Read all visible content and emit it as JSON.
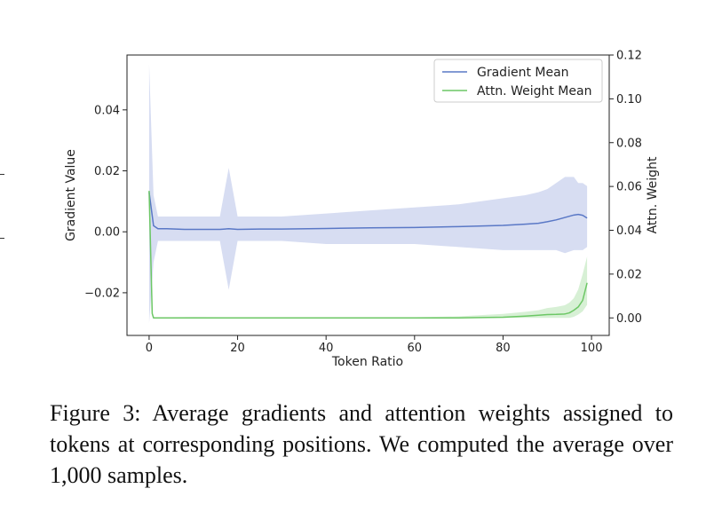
{
  "chart_data": {
    "type": "line",
    "xlabel": "Token Ratio",
    "ylabel_left": "Gradient Value",
    "ylabel_right": "Attn. Weight",
    "xlim": [
      -5,
      104
    ],
    "ylim_left": [
      -0.034,
      0.058
    ],
    "ylim_right": [
      -0.008,
      0.12
    ],
    "x_ticks": [
      0,
      20,
      40,
      60,
      80,
      100
    ],
    "x_tick_labels": [
      "0",
      "20",
      "40",
      "60",
      "80",
      "100"
    ],
    "y_left_ticks": [
      -0.02,
      0.0,
      0.02,
      0.04
    ],
    "y_left_tick_labels": [
      "−0.02",
      "0.00",
      "0.02",
      "0.04"
    ],
    "y_right_ticks": [
      0.0,
      0.02,
      0.04,
      0.06,
      0.08,
      0.1,
      0.12
    ],
    "y_right_tick_labels": [
      "0.00",
      "0.02",
      "0.04",
      "0.06",
      "0.08",
      "0.10",
      "0.12"
    ],
    "legend_position": "top-right",
    "grid": false,
    "series": [
      {
        "name": "Gradient Mean",
        "axis": "left",
        "color": "#5a78c6",
        "band_color": "#c9d1ee",
        "x": [
          0,
          1,
          2,
          4,
          8,
          12,
          16,
          18,
          20,
          25,
          30,
          40,
          50,
          60,
          70,
          80,
          85,
          88,
          90,
          92,
          94,
          96,
          97,
          98,
          99
        ],
        "mean": [
          0.013,
          0.002,
          0.001,
          0.001,
          0.0008,
          0.0008,
          0.0008,
          0.001,
          0.0008,
          0.0009,
          0.0009,
          0.0011,
          0.0013,
          0.0014,
          0.0017,
          0.0021,
          0.0025,
          0.0028,
          0.0033,
          0.0039,
          0.0047,
          0.0055,
          0.0057,
          0.0054,
          0.0045
        ],
        "upper": [
          0.055,
          0.012,
          0.005,
          0.005,
          0.005,
          0.005,
          0.005,
          0.021,
          0.005,
          0.005,
          0.005,
          0.006,
          0.007,
          0.008,
          0.009,
          0.011,
          0.012,
          0.013,
          0.014,
          0.016,
          0.018,
          0.018,
          0.016,
          0.016,
          0.015
        ],
        "lower": [
          -0.03,
          -0.01,
          -0.003,
          -0.003,
          -0.003,
          -0.003,
          -0.003,
          -0.019,
          -0.003,
          -0.003,
          -0.003,
          -0.004,
          -0.004,
          -0.004,
          -0.005,
          -0.006,
          -0.006,
          -0.006,
          -0.006,
          -0.006,
          -0.007,
          -0.006,
          -0.006,
          -0.006,
          -0.005
        ]
      },
      {
        "name": "Attn. Weight Mean",
        "axis": "right",
        "color": "#6cc765",
        "band_color": "#cdeccb",
        "x": [
          0,
          0.7,
          1,
          5,
          10,
          20,
          40,
          60,
          70,
          80,
          85,
          88,
          90,
          92,
          94,
          95,
          96,
          97,
          98,
          99
        ],
        "mean": [
          0.058,
          0.002,
          0.0,
          0.0,
          0.0,
          0.0,
          0.0,
          0.0,
          0.0,
          0.0003,
          0.0008,
          0.0012,
          0.0015,
          0.0016,
          0.0018,
          0.0023,
          0.0035,
          0.005,
          0.008,
          0.016
        ],
        "upper": [
          0.059,
          0.003,
          0.0003,
          0.0003,
          0.0004,
          0.0003,
          0.0003,
          0.0003,
          0.0007,
          0.0018,
          0.0028,
          0.0035,
          0.0045,
          0.005,
          0.0058,
          0.007,
          0.009,
          0.013,
          0.02,
          0.028
        ],
        "lower": [
          0.057,
          0.001,
          0.0,
          0.0,
          0.0,
          0.0,
          0.0,
          0.0,
          0.0,
          0.0,
          0.0,
          0.0,
          0.0,
          0.0,
          0.0,
          0.0,
          0.0005,
          0.0015,
          0.003,
          0.006
        ]
      }
    ]
  },
  "caption": "Figure 3: Average gradients and attention weights assigned to tokens at corresponding positions.  We computed the average over 1,000 samples."
}
